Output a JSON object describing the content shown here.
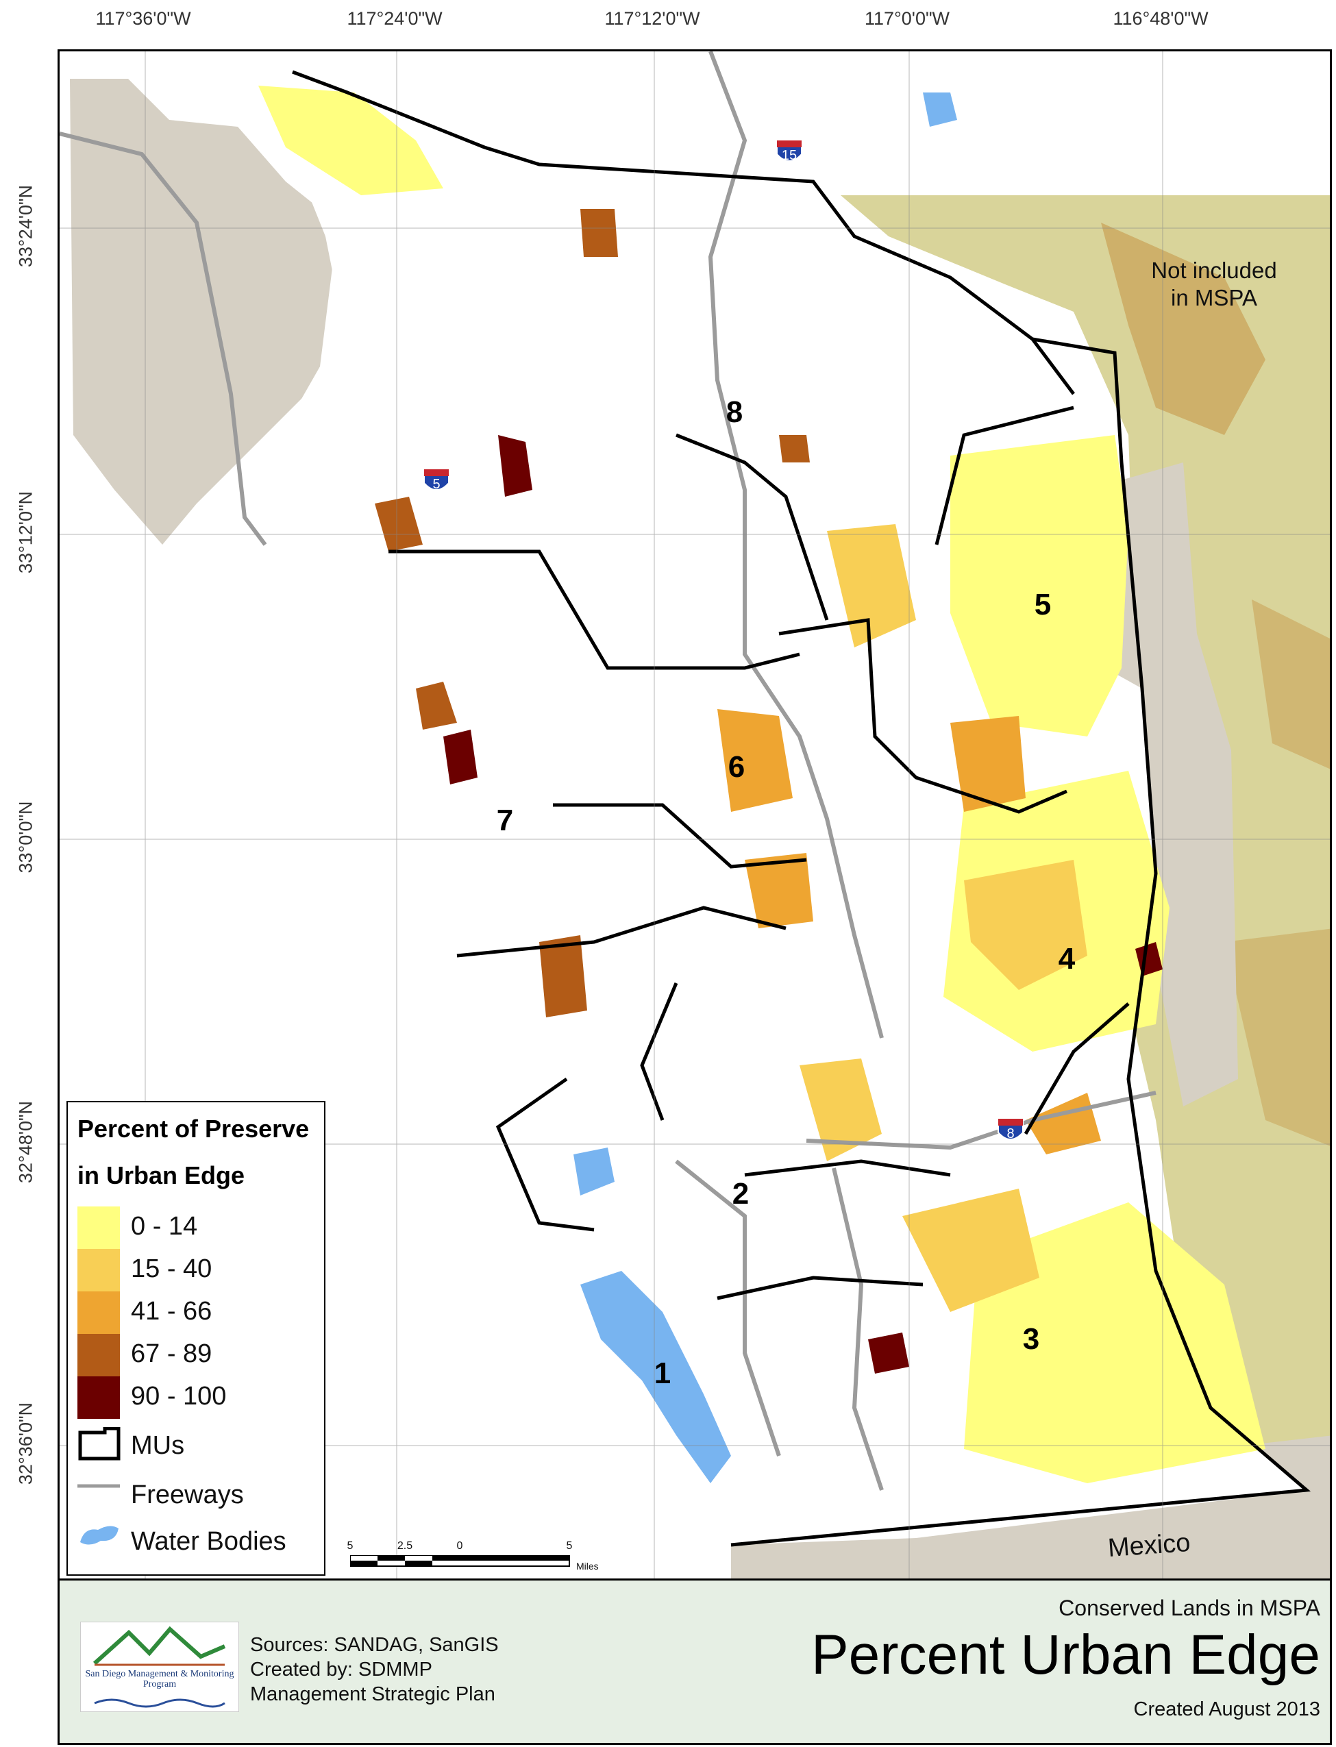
{
  "map": {
    "lon_ticks": [
      "117°36'0\"W",
      "117°24'0\"W",
      "117°12'0\"W",
      "117°0'0\"W",
      "116°48'0\"W"
    ],
    "lat_ticks": [
      "33°24'0\"N",
      "33°12'0\"N",
      "33°0'0\"N",
      "32°48'0\"N",
      "32°36'0\"N"
    ],
    "mu_labels": [
      "1",
      "2",
      "3",
      "4",
      "5",
      "6",
      "7",
      "8"
    ],
    "highway_shields": [
      "15",
      "5",
      "8"
    ],
    "excluded_note": "Not included in MSPA",
    "country_label": "Mexico",
    "colors": {
      "background_excluded": "#d6d0c4",
      "outside_mspa": "#d9d49a",
      "freeway": "#9b9b9b",
      "water": "#78b4f0",
      "mu_boundary": "#000000"
    }
  },
  "legend": {
    "title_line1": "Percent of Preserve",
    "title_line2": "in Urban Edge",
    "classes": [
      {
        "label": "0 - 14",
        "color": "#ffff80"
      },
      {
        "label": "15 - 40",
        "color": "#f8cf55"
      },
      {
        "label": "41 - 66",
        "color": "#eea531"
      },
      {
        "label": "67 - 89",
        "color": "#b25b17"
      },
      {
        "label": "90 - 100",
        "color": "#6b0000"
      }
    ],
    "mus_label": "MUs",
    "freeways_label": "Freeways",
    "water_label": "Water Bodies"
  },
  "scale_bar": {
    "ticks": [
      "5",
      "2.5",
      "0",
      "5"
    ],
    "unit": "Miles"
  },
  "footer": {
    "logo_text": "San Diego Management & Monitoring Program",
    "sources": "Sources: SANDAG, SanGIS",
    "created_by": "Created by: SDMMP",
    "plan": "Management Strategic Plan",
    "subtitle": "Conserved Lands in MSPA",
    "title": "Percent Urban Edge",
    "created_date": "Created August 2013"
  }
}
